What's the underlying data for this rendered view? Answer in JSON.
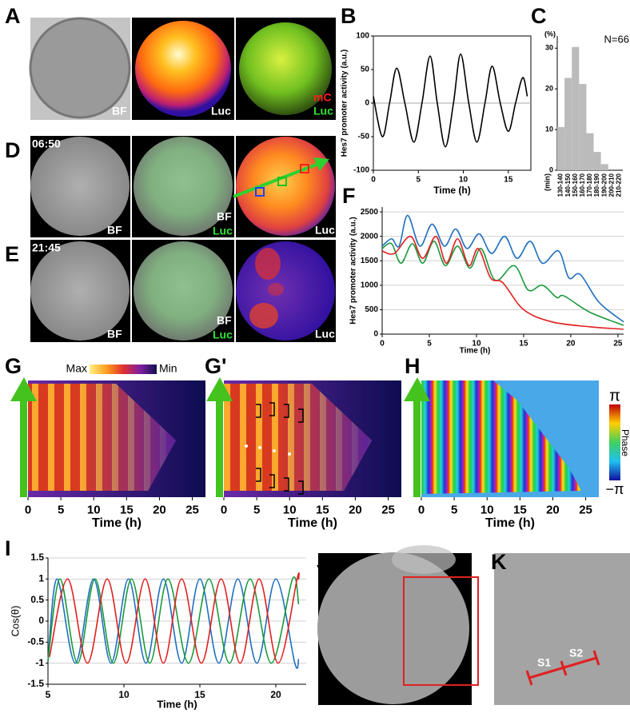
{
  "panel_labels": [
    "A",
    "B",
    "C",
    "D",
    "E",
    "F",
    "G",
    "G'",
    "H",
    "I",
    "J",
    "K"
  ],
  "images": {
    "a": {
      "bf": "BF",
      "luc": "Luc",
      "merge_mc": "mC",
      "merge_luc": "Luc"
    },
    "d": {
      "time": "06:50",
      "bf": "BF",
      "merge_bf": "BF",
      "merge_luc": "Luc",
      "luc": "Luc"
    },
    "e": {
      "time": "21:45",
      "bf": "BF",
      "merge_bf": "BF",
      "merge_luc": "Luc",
      "luc": "Luc"
    },
    "k": {
      "s1": "S1",
      "s2": "S2"
    }
  },
  "chart_data": [
    {
      "type": "line",
      "xlabel": "Time (h)",
      "ylabel": "Hes7 promoter activity (a.u.)",
      "xlim": [
        0,
        17.5
      ],
      "ylim": [
        -100,
        100
      ],
      "xticks": [
        0,
        5,
        10,
        15
      ],
      "yticks": [
        -100,
        -50,
        0,
        50,
        100
      ],
      "zero_line": true,
      "smooth": true,
      "series": [
        {
          "color": "#000000",
          "x": [
            0,
            1,
            1.8,
            2.6,
            3.5,
            4.5,
            5.4,
            6.3,
            7.1,
            8,
            8.9,
            9.7,
            10.6,
            11.5,
            12.4,
            13.2,
            14.1,
            15,
            15.8,
            16.6,
            17.1
          ],
          "values": [
            10,
            -50,
            0,
            52,
            0,
            -58,
            0,
            70,
            0,
            -65,
            0,
            73,
            0,
            -58,
            0,
            55,
            0,
            -42,
            0,
            38,
            10
          ]
        }
      ]
    },
    {
      "type": "bar",
      "title": "N=66",
      "ylabel": "(%)",
      "xlabel": "(min)",
      "categories": [
        "130-140",
        "140-150",
        "150-160",
        "160-170",
        "170-180",
        "180-190",
        "190-200",
        "200-210",
        "210-220"
      ],
      "values": [
        10.6,
        22.7,
        30.3,
        21.2,
        9.1,
        4.5,
        1.5,
        0,
        0
      ],
      "color": "#bbbbbb",
      "ylim": [
        0,
        33
      ],
      "yticks": [
        0,
        10,
        20,
        30
      ]
    },
    {
      "type": "line",
      "xlabel": "Time (h)",
      "ylabel": "Hes7 promoter activity (a.u.)",
      "xlim": [
        0,
        25.6
      ],
      "ylim": [
        0,
        2600
      ],
      "xticks": [
        0,
        5,
        10,
        15,
        20,
        25
      ],
      "yticks": [
        0,
        500,
        1000,
        1500,
        2000,
        2500
      ],
      "grid": true,
      "smooth": true,
      "series": [
        {
          "color": "#1f6fbf",
          "x": [
            0,
            1,
            1.8,
            2.7,
            4,
            5.3,
            6.6,
            7.8,
            9,
            10.3,
            11.6,
            13,
            14.3,
            15.7,
            17,
            18.7,
            19.8,
            21,
            23,
            25.6
          ],
          "values": [
            1800,
            1950,
            1800,
            2430,
            1800,
            2250,
            1800,
            2150,
            1750,
            2050,
            1650,
            2000,
            1550,
            1900,
            1450,
            1700,
            1150,
            1220,
            650,
            250
          ]
        },
        {
          "color": "#1a9a3c",
          "x": [
            0,
            1,
            2,
            3.2,
            4.3,
            5.5,
            6.7,
            8,
            9.3,
            10.5,
            12,
            14,
            15.5,
            17,
            18.5,
            19.3,
            22,
            25.6
          ],
          "values": [
            1750,
            1850,
            1450,
            1850,
            1450,
            1900,
            1400,
            1800,
            1350,
            1750,
            1100,
            1400,
            900,
            1000,
            750,
            780,
            450,
            180
          ]
        },
        {
          "color": "#e02020",
          "x": [
            0,
            1.3,
            3,
            4.3,
            5.7,
            6.8,
            8,
            9.2,
            10.2,
            11.5,
            12.8,
            15,
            18,
            22,
            25.6
          ],
          "values": [
            1700,
            1650,
            2000,
            1550,
            2000,
            1450,
            1950,
            1400,
            1750,
            1150,
            1050,
            500,
            250,
            150,
            100
          ]
        }
      ]
    },
    {
      "type": "heatmap",
      "xlabel": "Time (h)",
      "xlim": [
        0,
        27
      ],
      "xticks": [
        0,
        5,
        10,
        15,
        20,
        25
      ],
      "colorbar_max": "Max",
      "colorbar_min": "Min"
    },
    {
      "type": "heatmap",
      "xlabel": "Time (h)",
      "xlim": [
        0,
        27
      ],
      "xticks": [
        0,
        5,
        10,
        15,
        20,
        25
      ]
    },
    {
      "type": "heatmap",
      "xlabel": "Time (h)",
      "xlim": [
        0,
        27
      ],
      "xticks": [
        0,
        5,
        10,
        15,
        20,
        25
      ],
      "colorbar_max": "π",
      "colorbar_label": "Phase",
      "colorbar_min": "−π"
    },
    {
      "type": "line",
      "xlabel": "Time (h)",
      "ylabel": "Cos(θ)",
      "xlim": [
        5,
        22
      ],
      "ylim": [
        -1.5,
        1.5
      ],
      "xticks": [
        5,
        10,
        15,
        20
      ],
      "yticks": [
        -1.5,
        -1,
        -0.5,
        0,
        0.5,
        1,
        1.5
      ],
      "grid": true,
      "smooth": true,
      "series": [
        {
          "color": "#1f6fbf",
          "x": [
            5,
            5.6,
            6.8,
            8.0,
            9.15,
            10.3,
            11.45,
            12.6,
            13.8,
            15.0,
            16.25,
            17.5,
            18.75,
            20.0,
            21.25,
            21.5
          ],
          "values": [
            -0.95,
            1,
            -1,
            1,
            -1,
            1,
            -1,
            1,
            -1,
            1,
            -1,
            1,
            -1,
            1,
            -1,
            -0.9
          ]
        },
        {
          "color": "#1a9a3c",
          "x": [
            5,
            5.8,
            6.95,
            8.1,
            9.3,
            10.5,
            11.7,
            12.9,
            14.25,
            15.6,
            16.95,
            18.3,
            19.7,
            21.1,
            21.5
          ],
          "values": [
            -0.95,
            1,
            -1,
            1,
            -1,
            1,
            -1,
            1,
            -1,
            1,
            -1,
            1,
            -1,
            1,
            0.4
          ]
        },
        {
          "color": "#e02020",
          "x": [
            5.1,
            6.3,
            7.6,
            8.9,
            10.15,
            11.4,
            12.6,
            13.8,
            15.1,
            16.4,
            17.65,
            18.9,
            20.15,
            21.4,
            21.5
          ],
          "values": [
            -0.85,
            1,
            -1,
            1,
            -1,
            1,
            -1,
            1,
            -1,
            1,
            -1,
            1,
            -1,
            1,
            0.98
          ]
        }
      ]
    }
  ]
}
